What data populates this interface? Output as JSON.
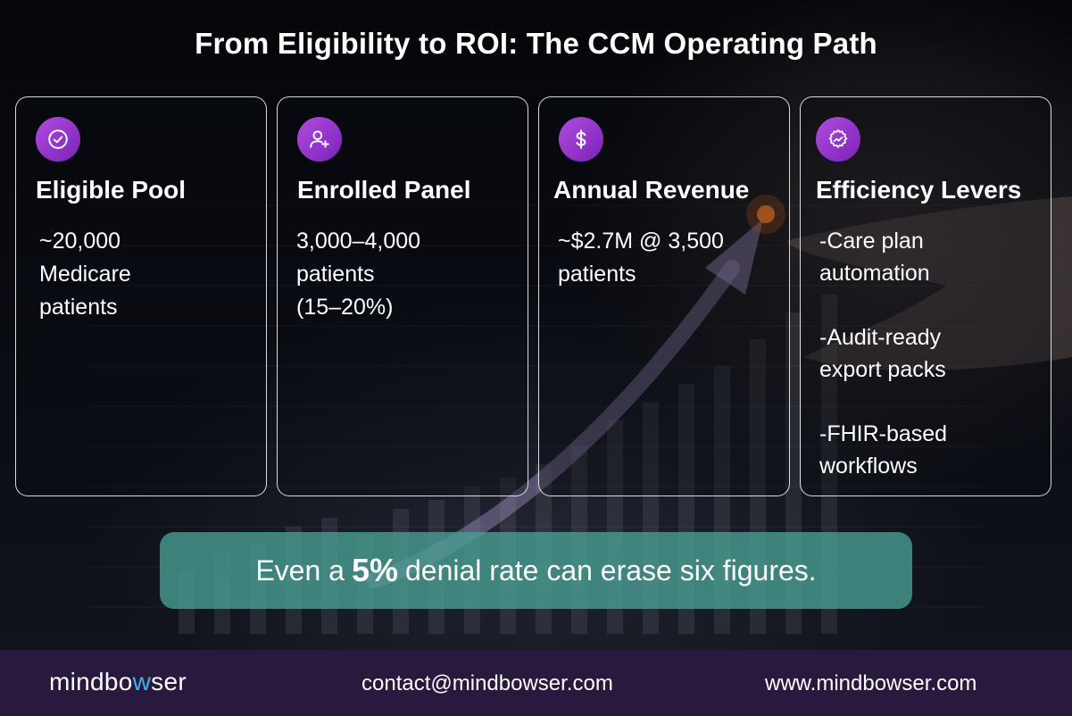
{
  "title": "From Eligibility to ROI: The CCM Operating Path",
  "cards": [
    {
      "heading": "Eligible Pool",
      "icon": "check-circle-icon",
      "lines": [
        "~20,000",
        "Medicare",
        "patients"
      ]
    },
    {
      "heading": "Enrolled Panel",
      "icon": "user-plus-icon",
      "lines": [
        "3,000–4,000",
        "patients",
        "(15–20%)"
      ]
    },
    {
      "heading": "Annual Revenue",
      "icon": "dollar-icon",
      "lines": [
        "~$2.7M @ 3,500",
        "patients"
      ]
    },
    {
      "heading": "Efficiency Levers",
      "icon": "gear-trend-icon",
      "items": [
        [
          "-Care plan",
          "automation"
        ],
        [
          "-Audit-ready",
          "export packs"
        ],
        [
          "-FHIR-based",
          "workflows"
        ]
      ]
    }
  ],
  "banner": {
    "before": "Even a",
    "highlight": "5%",
    "after": "denial rate can erase six figures."
  },
  "footer": {
    "logo": {
      "part1": "mindbo",
      "part2": "w",
      "part3": "ser"
    },
    "email": "contact@mindbowser.com",
    "website": "www.mindbowser.com"
  },
  "colors": {
    "accent_purple": "#9b3fd1",
    "banner_teal": "#4aa096",
    "footer_bg": "#29193f",
    "logo_w": "#3fb5e6"
  }
}
